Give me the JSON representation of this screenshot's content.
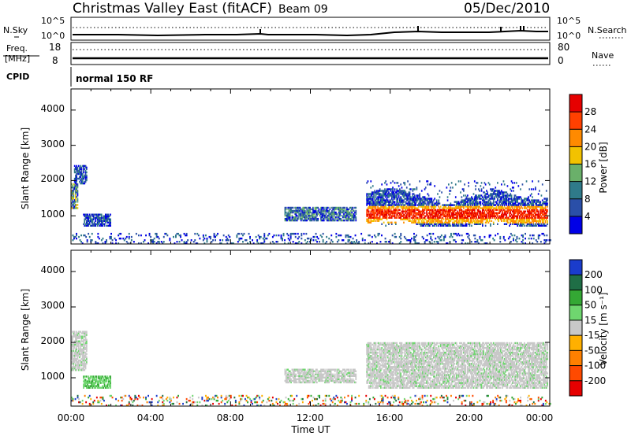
{
  "header": {
    "title": "Christmas Valley East (fitACF)",
    "beam": "Beam 09",
    "date": "05/Dec/2010"
  },
  "param_panels": {
    "nsky": {
      "label": "N.Sky",
      "left_ticks": [
        "10^5",
        "10^0"
      ]
    },
    "nsearch": {
      "label": "N.Search",
      "right_ticks": [
        "10^5",
        "10^0"
      ]
    },
    "freq": {
      "label_line1": "Freq.",
      "label_line2": "[MHz]",
      "left_ticks": [
        "18",
        "8"
      ]
    },
    "nave": {
      "label": "Nave",
      "right_ticks": [
        "80",
        "0"
      ]
    },
    "cpid": {
      "label": "CPID",
      "value": "normal 150 RF"
    }
  },
  "chart_data": [
    {
      "type": "heatmap",
      "name": "power",
      "ylabel": "Slant Range [km]",
      "xlabel": "",
      "xlim": [
        0,
        24
      ],
      "ylim": [
        200,
        4600
      ],
      "y_ticks": [
        "1000",
        "2000",
        "3000",
        "4000"
      ],
      "colorbar": {
        "label": "Power [dB]",
        "ticks": [
          "4",
          "8",
          "12",
          "16",
          "20",
          "24",
          "28"
        ],
        "colors": [
          "#0000e6",
          "#2a4fa8",
          "#2f7a8a",
          "#6ab06a",
          "#f2c200",
          "#ff8a00",
          "#ff4000",
          "#e60000"
        ]
      },
      "echo_regions": [
        {
          "t0": 0.0,
          "t1": 0.35,
          "r0": 1200,
          "r1": 1900,
          "level": "mixed"
        },
        {
          "t0": 0.15,
          "t1": 0.8,
          "r0": 1900,
          "r1": 2400,
          "level": "low"
        },
        {
          "t0": 0.6,
          "t1": 2.0,
          "r0": 700,
          "r1": 1050,
          "level": "low"
        },
        {
          "t0": 10.7,
          "t1": 14.3,
          "r0": 850,
          "r1": 1250,
          "level": "low-mid"
        },
        {
          "t0": 14.8,
          "t1": 23.9,
          "r0": 700,
          "r1": 2000,
          "level": "strong"
        },
        {
          "t0": 0.0,
          "t1": 24.0,
          "r0": 200,
          "r1": 500,
          "level": "scatter"
        }
      ]
    },
    {
      "type": "heatmap",
      "name": "velocity",
      "ylabel": "Slant Range [km]",
      "xlabel": "Time UT",
      "xlim": [
        0,
        24
      ],
      "ylim": [
        200,
        4600
      ],
      "x_ticks": [
        "00:00",
        "04:00",
        "08:00",
        "12:00",
        "16:00",
        "20:00",
        "00:00"
      ],
      "y_ticks": [
        "1000",
        "2000",
        "3000",
        "4000"
      ],
      "colorbar": {
        "label": "Velocity [m s⁻¹]",
        "ticks": [
          "200",
          "100",
          "50",
          "15",
          "-15",
          "-50",
          "-100",
          "-200"
        ],
        "colors": [
          "#1a3ccc",
          "#1f6e46",
          "#34a834",
          "#6fd66f",
          "#c8c8c8",
          "#ffb000",
          "#ff8000",
          "#ff4a00",
          "#e60000"
        ]
      },
      "echo_regions": [
        {
          "t0": 0.0,
          "t1": 0.8,
          "r0": 1200,
          "r1": 2300,
          "level": "ground"
        },
        {
          "t0": 0.6,
          "t1": 2.0,
          "r0": 700,
          "r1": 1050,
          "level": "positive"
        },
        {
          "t0": 10.7,
          "t1": 14.3,
          "r0": 850,
          "r1": 1250,
          "level": "ground"
        },
        {
          "t0": 14.8,
          "t1": 23.9,
          "r0": 700,
          "r1": 2000,
          "level": "ground"
        },
        {
          "t0": 0.0,
          "t1": 24.0,
          "r0": 200,
          "r1": 500,
          "level": "scatter"
        }
      ]
    }
  ]
}
